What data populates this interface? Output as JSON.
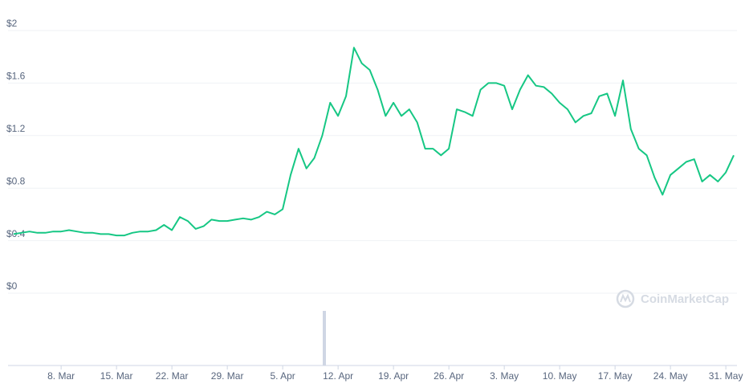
{
  "chart_data": {
    "type": "line",
    "watermark": "CoinMarketCap",
    "categories": [
      null,
      null,
      null,
      null,
      null,
      null,
      "8. Mar",
      null,
      null,
      null,
      null,
      null,
      null,
      "15. Mar",
      null,
      null,
      null,
      null,
      null,
      null,
      "22. Mar",
      null,
      null,
      null,
      null,
      null,
      null,
      "29. Mar",
      null,
      null,
      null,
      null,
      null,
      null,
      "5. Apr",
      null,
      null,
      null,
      null,
      null,
      null,
      "12. Apr",
      null,
      null,
      null,
      null,
      null,
      null,
      "19. Apr",
      null,
      null,
      null,
      null,
      null,
      null,
      "26. Apr",
      null,
      null,
      null,
      null,
      null,
      null,
      "3. May",
      null,
      null,
      null,
      null,
      null,
      null,
      "10. May",
      null,
      null,
      null,
      null,
      null,
      null,
      "17. May",
      null,
      null,
      null,
      null,
      null,
      null,
      "24. May",
      null,
      null,
      null,
      null,
      null,
      null,
      "31. May",
      null
    ],
    "series": [
      {
        "color": "#16c784",
        "values": [
          0.45,
          0.46,
          0.47,
          0.46,
          0.46,
          0.47,
          0.47,
          0.48,
          0.47,
          0.46,
          0.46,
          0.45,
          0.45,
          0.44,
          0.44,
          0.46,
          0.47,
          0.47,
          0.48,
          0.52,
          0.48,
          0.58,
          0.55,
          0.49,
          0.51,
          0.56,
          0.55,
          0.55,
          0.56,
          0.57,
          0.56,
          0.58,
          0.62,
          0.6,
          0.64,
          0.9,
          1.1,
          0.95,
          1.03,
          1.2,
          1.45,
          1.35,
          1.5,
          1.87,
          1.75,
          1.7,
          1.55,
          1.35,
          1.45,
          1.35,
          1.4,
          1.3,
          1.1,
          1.1,
          1.05,
          1.1,
          1.4,
          1.38,
          1.35,
          1.55,
          1.6,
          1.6,
          1.58,
          1.4,
          1.55,
          1.66,
          1.58,
          1.57,
          1.52,
          1.45,
          1.4,
          1.3,
          1.35,
          1.37,
          1.5,
          1.52,
          1.35,
          1.62,
          1.25,
          1.1,
          1.05,
          0.88,
          0.75,
          0.9,
          0.95,
          1.0,
          1.02,
          0.85,
          0.9,
          0.85,
          0.92,
          1.05
        ]
      }
    ],
    "ylim": [
      0,
      2
    ],
    "yticks": [
      {
        "value": 0,
        "label": "$0"
      },
      {
        "value": 0.4,
        "label": "$0.4"
      },
      {
        "value": 0.8,
        "label": "$0.8"
      },
      {
        "value": 1.2,
        "label": "$1.2"
      },
      {
        "value": 1.6,
        "label": "$1.6"
      },
      {
        "value": 2,
        "label": "$2"
      }
    ],
    "grid": true
  }
}
